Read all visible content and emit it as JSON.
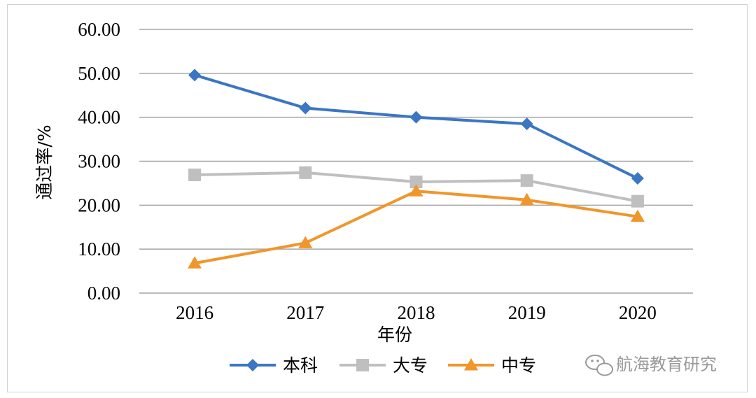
{
  "chart_data": {
    "type": "line",
    "categories": [
      "2016",
      "2017",
      "2018",
      "2019",
      "2020"
    ],
    "series": [
      {
        "name": "本科",
        "values": [
          49.6,
          42.1,
          40.0,
          38.5,
          26.1
        ],
        "color": "#3b76c4",
        "marker": "diamond"
      },
      {
        "name": "大专",
        "values": [
          26.9,
          27.4,
          25.3,
          25.6,
          20.9
        ],
        "color": "#bfbfbf",
        "marker": "square"
      },
      {
        "name": "中专",
        "values": [
          6.8,
          11.4,
          23.2,
          21.2,
          17.4
        ],
        "color": "#f0962b",
        "marker": "triangle"
      }
    ],
    "yticks": [
      "0.00",
      "10.00",
      "20.00",
      "30.00",
      "40.00",
      "50.00",
      "60.00"
    ],
    "ylim": [
      0,
      60
    ],
    "xlabel": "年份",
    "ylabel": "通过率/%",
    "grid": true,
    "legend_position": "bottom"
  },
  "watermark": {
    "text": "航海教育研究",
    "icon": "wechat-icon"
  }
}
